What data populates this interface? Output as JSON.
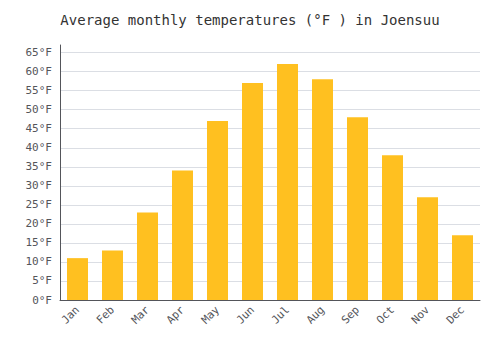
{
  "chart_data": {
    "type": "bar",
    "title": "Average monthly temperatures (°F ) in Joensuu",
    "categories": [
      "Jan",
      "Feb",
      "Mar",
      "Apr",
      "May",
      "Jun",
      "Jul",
      "Aug",
      "Sep",
      "Oct",
      "Nov",
      "Dec"
    ],
    "values": [
      11,
      13,
      23,
      34,
      47,
      57,
      62,
      58,
      48,
      38,
      27,
      17
    ],
    "color": "#FFC020",
    "ylim": [
      0,
      67
    ],
    "yticks": [
      {
        "value": 0,
        "label": "0°F"
      },
      {
        "value": 5,
        "label": "5°F"
      },
      {
        "value": 10,
        "label": "10°F"
      },
      {
        "value": 15,
        "label": "15°F"
      },
      {
        "value": 20,
        "label": "20°F"
      },
      {
        "value": 25,
        "label": "25°F"
      },
      {
        "value": 30,
        "label": "30°F"
      },
      {
        "value": 35,
        "label": "35°F"
      },
      {
        "value": 40,
        "label": "40°F"
      },
      {
        "value": 45,
        "label": "45°F"
      },
      {
        "value": 50,
        "label": "50°F"
      },
      {
        "value": 55,
        "label": "55°F"
      },
      {
        "value": 60,
        "label": "60°F"
      },
      {
        "value": 65,
        "label": "65°F"
      }
    ],
    "grid": true
  }
}
